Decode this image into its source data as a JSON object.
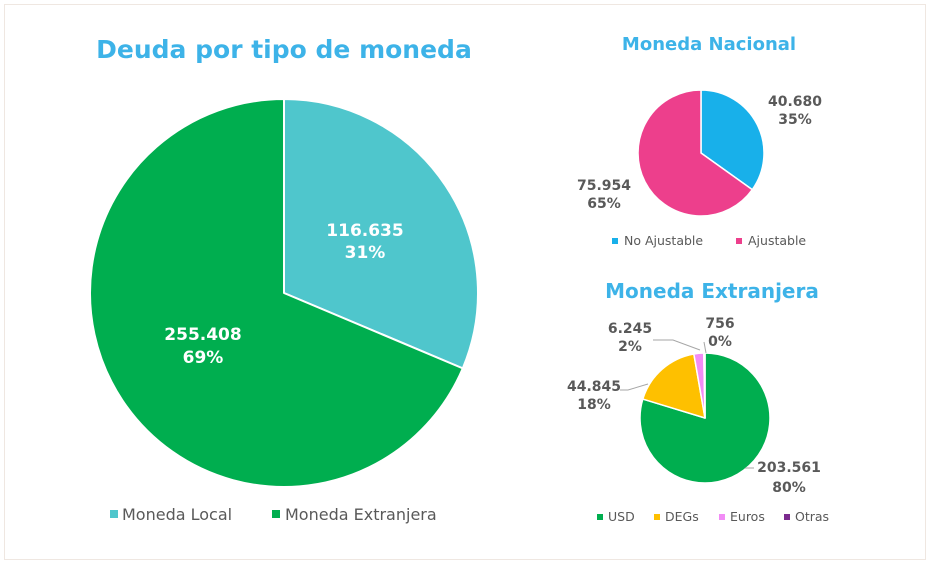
{
  "chart_data": [
    {
      "id": "main",
      "type": "pie",
      "title": "Deuda por tipo de moneda",
      "slices": [
        {
          "label": "Moneda Local",
          "value": 116635,
          "value_text": "116.635",
          "pct_text": "31%",
          "color": "#4fc6cc"
        },
        {
          "label": "Moneda Extranjera",
          "value": 255408,
          "value_text": "255.408",
          "pct_text": "69%",
          "color": "#00ae4f"
        }
      ]
    },
    {
      "id": "nacional",
      "type": "pie",
      "title": "Moneda Nacional",
      "slices": [
        {
          "label": "No Ajustable",
          "value": 40680,
          "value_text": "40.680",
          "pct_text": "35%",
          "color": "#18b0ea"
        },
        {
          "label": "Ajustable",
          "value": 75954,
          "value_text": "75.954",
          "pct_text": "65%",
          "color": "#ed3f8c"
        }
      ]
    },
    {
      "id": "extranjera",
      "type": "pie",
      "title": "Moneda Extranjera",
      "slices": [
        {
          "label": "USD",
          "value": 203561,
          "value_text": "203.561",
          "pct_text": "80%",
          "color": "#00ae4f"
        },
        {
          "label": "DEGs",
          "value": 44845,
          "value_text": "44.845",
          "pct_text": "18%",
          "color": "#fec000"
        },
        {
          "label": "Euros",
          "value": 6245,
          "value_text": "6.245",
          "pct_text": "2%",
          "color": "#f28cf6"
        },
        {
          "label": "Otras",
          "value": 756,
          "value_text": "756",
          "pct_text": "0%",
          "color": "#7b2a8e"
        }
      ]
    }
  ]
}
